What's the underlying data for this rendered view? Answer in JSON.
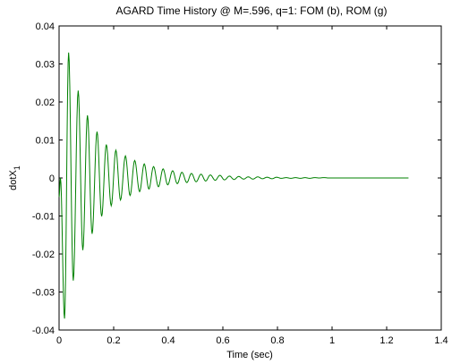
{
  "chart_data": {
    "type": "line",
    "title": "AGARD Time History @ M=.596, q=1: FOM (b), ROM (g)",
    "xlabel": "Time (sec)",
    "ylabel": "dotX",
    "ylabel_subscript": "1",
    "xlim": [
      0,
      1.4
    ],
    "ylim": [
      -0.04,
      0.04
    ],
    "xticks": [
      "0",
      "0.2",
      "0.4",
      "0.6",
      "0.8",
      "1",
      "1.2",
      "1.4"
    ],
    "yticks": [
      "0.04",
      "0.03",
      "0.02",
      "0.01",
      "0",
      "-0.01",
      "-0.02",
      "-0.03",
      "-0.04"
    ],
    "grid": false,
    "series": [
      {
        "color": "#008000",
        "x": [
          0,
          0.005,
          0.02,
          0.035,
          0.052,
          0.07,
          0.087,
          0.104,
          0.121,
          0.139,
          0.156,
          0.173,
          0.191,
          0.208,
          0.225,
          0.243,
          0.26,
          0.277,
          0.295,
          0.312,
          0.329,
          0.346,
          0.364,
          0.381,
          0.398,
          0.416,
          0.433,
          0.45,
          0.468,
          0.485,
          0.502,
          0.52,
          0.537,
          0.554,
          0.572,
          0.589,
          0.606,
          0.624,
          0.641,
          0.658,
          0.676,
          0.693,
          0.71,
          0.728,
          0.745,
          0.762,
          0.78,
          0.797,
          0.814,
          0.832,
          0.849,
          0.866,
          0.884,
          0.901,
          0.918,
          0.936,
          0.953,
          0.97,
          0.988,
          1.005,
          1.022,
          1.04,
          1.057,
          1.074,
          1.092,
          1.109,
          1.126,
          1.144,
          1.161,
          1.178,
          1.196,
          1.213,
          1.23,
          1.248,
          1.265,
          1.28
        ],
        "y": [
          -0.005,
          0.0,
          -0.037,
          0.033,
          -0.027,
          0.023,
          -0.019,
          0.0165,
          -0.0147,
          0.0122,
          -0.0101,
          0.0088,
          -0.0073,
          0.0073,
          -0.0058,
          0.0058,
          -0.0046,
          0.0046,
          -0.0036,
          0.0037,
          -0.0029,
          0.003,
          -0.0023,
          0.0024,
          -0.0018,
          0.0019,
          -0.0015,
          0.0015,
          -0.0012,
          0.0012,
          -0.001,
          0.001,
          -0.0008,
          0.0008,
          -0.0006,
          0.0007,
          -0.0005,
          0.0005,
          -0.0004,
          0.0004,
          -0.0003,
          0.0003,
          -0.0003,
          0.0003,
          -0.0002,
          0.0002,
          -0.0002,
          0.0002,
          -0.0001,
          0.0001,
          -0.0001,
          0.0001,
          -0.0001,
          0.0001,
          -0.0001,
          0.0001,
          0.0,
          0.0001,
          0.0,
          0.0,
          0.0,
          0.0,
          0.0,
          0.0,
          0.0,
          0.0,
          0.0,
          0.0,
          0.0,
          0.0,
          0.0,
          0.0,
          0.0,
          0.0,
          0.0,
          0.0
        ]
      }
    ]
  }
}
